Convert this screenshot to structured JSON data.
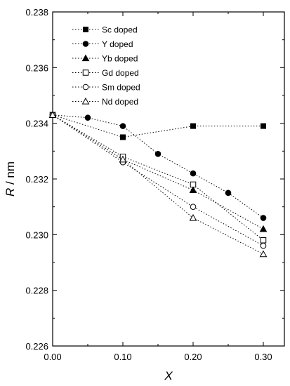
{
  "chart_data": {
    "type": "line",
    "xlabel": "X",
    "ylabel": "R / nm",
    "xlim": [
      0,
      0.33
    ],
    "ylim": [
      0.226,
      0.238
    ],
    "xticks": [
      0.0,
      0.1,
      0.2,
      0.3
    ],
    "xtick_labels": [
      "0.00",
      "0.10",
      "0.20",
      "0.30"
    ],
    "yticks": [
      0.226,
      0.228,
      0.23,
      0.232,
      0.234,
      0.236,
      0.238
    ],
    "ytick_labels": [
      "0.226",
      "0.228",
      "0.230",
      "0.232",
      "0.234",
      "0.236",
      "0.238"
    ],
    "legend_position": "top-left",
    "grid": false,
    "series": [
      {
        "name": "Sc doped",
        "marker": "square-filled",
        "x": [
          0.0,
          0.1,
          0.2,
          0.3
        ],
        "y": [
          0.2343,
          0.2335,
          0.2339,
          0.2339
        ]
      },
      {
        "name": "Y doped",
        "marker": "circle-filled",
        "x": [
          0.0,
          0.05,
          0.1,
          0.15,
          0.2,
          0.25,
          0.3
        ],
        "y": [
          0.2343,
          0.2342,
          0.2339,
          0.2329,
          0.2322,
          0.2315,
          0.2306
        ]
      },
      {
        "name": "Yb doped",
        "marker": "triangle-filled",
        "x": [
          0.0,
          0.1,
          0.2,
          0.3
        ],
        "y": [
          0.2343,
          0.2327,
          0.2316,
          0.2302
        ]
      },
      {
        "name": "Gd doped",
        "marker": "square-open",
        "x": [
          0.0,
          0.1,
          0.2,
          0.3
        ],
        "y": [
          0.2343,
          0.2328,
          0.2318,
          0.2298
        ]
      },
      {
        "name": "Sm doped",
        "marker": "circle-open",
        "x": [
          0.0,
          0.1,
          0.2,
          0.3
        ],
        "y": [
          0.2343,
          0.2326,
          0.231,
          0.2296
        ]
      },
      {
        "name": "Nd doped",
        "marker": "triangle-open",
        "x": [
          0.0,
          0.1,
          0.2,
          0.3
        ],
        "y": [
          0.2343,
          0.2327,
          0.2306,
          0.2293
        ]
      }
    ]
  }
}
